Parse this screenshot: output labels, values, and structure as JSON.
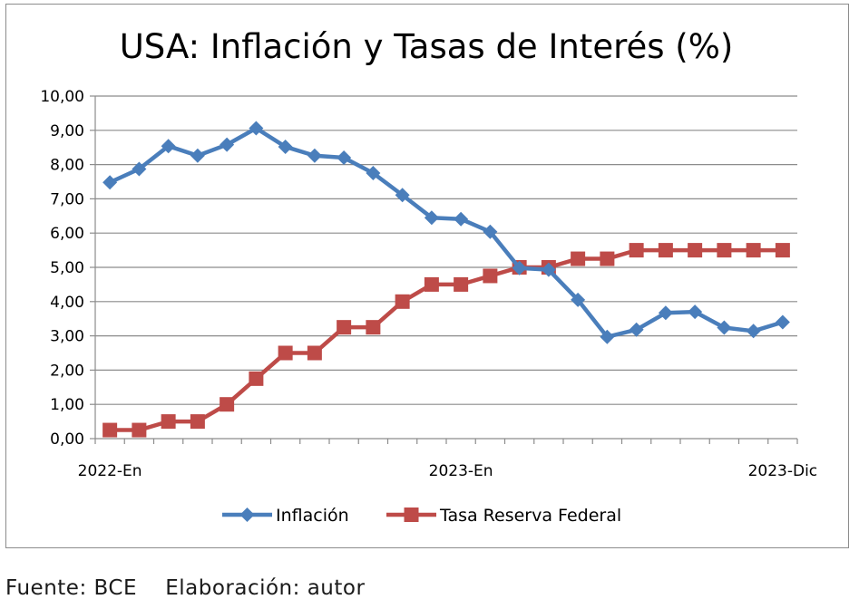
{
  "chart_data": {
    "type": "line",
    "title": "USA: Inflación y Tasas de Interés (%)",
    "xlabel": "",
    "ylabel": "",
    "ylim": [
      0,
      10
    ],
    "yticks": [
      "0,00",
      "1,00",
      "2,00",
      "3,00",
      "4,00",
      "5,00",
      "6,00",
      "7,00",
      "8,00",
      "9,00",
      "10,00"
    ],
    "x_tick_labels": [
      {
        "index": 0,
        "label": "2022-En"
      },
      {
        "index": 12,
        "label": "2023-En"
      },
      {
        "index": 23,
        "label": "2023-Dic"
      }
    ],
    "grid": true,
    "legend": "bottom",
    "series": [
      {
        "name": "Inflación",
        "color": "#4a7ebb",
        "marker": "diamond",
        "values": [
          7.48,
          7.87,
          8.54,
          8.26,
          8.58,
          9.06,
          8.52,
          8.26,
          8.2,
          7.75,
          7.11,
          6.45,
          6.41,
          6.04,
          4.98,
          4.93,
          4.05,
          2.97,
          3.18,
          3.67,
          3.7,
          3.24,
          3.14,
          3.4
        ]
      },
      {
        "name": "Tasa Reserva Federal",
        "color": "#be4b48",
        "marker": "square",
        "values": [
          0.25,
          0.25,
          0.5,
          0.5,
          1.0,
          1.75,
          2.5,
          2.5,
          3.25,
          3.25,
          4.0,
          4.5,
          4.5,
          4.75,
          5.0,
          5.0,
          5.25,
          5.25,
          5.5,
          5.5,
          5.5,
          5.5,
          5.5,
          5.5
        ]
      }
    ]
  },
  "footer": {
    "source": "Fuente: BCE    Elaboración: autor"
  }
}
